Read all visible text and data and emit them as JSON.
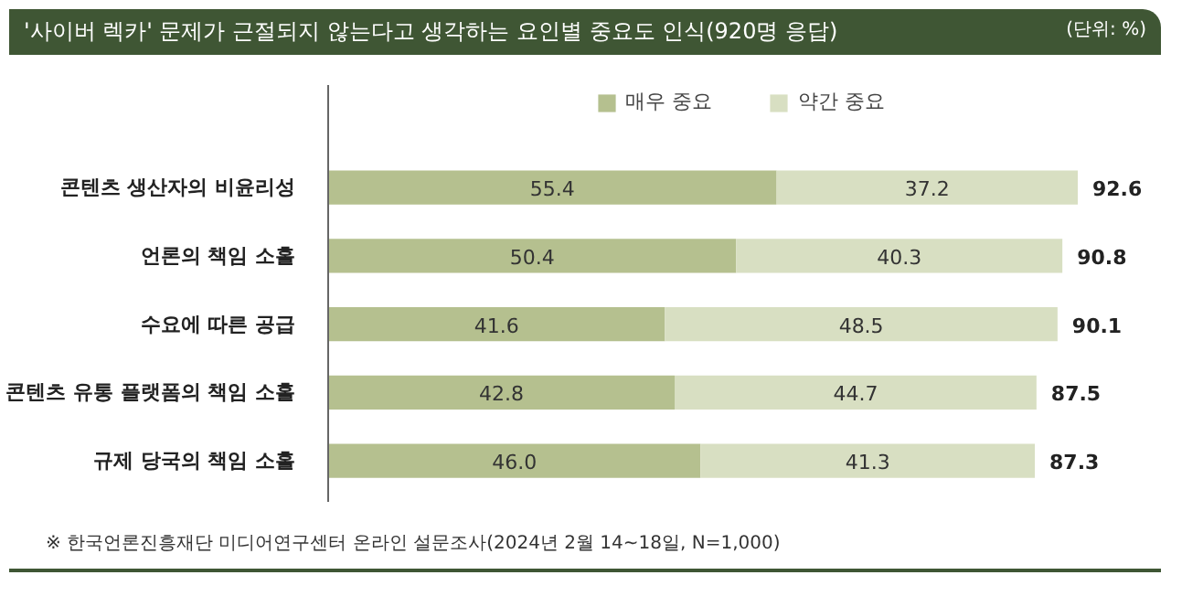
{
  "chart_data": {
    "type": "bar",
    "orientation": "horizontal",
    "stacked": true,
    "title": "'사이버 렉카' 문제가 근절되지 않는다고 생각하는 요인별 중요도 인식(920명 응답)",
    "annotations": [
      "(단위: %)",
      "※ 한국언론진흥재단 미디어연구센터 온라인 설문조사(2024년 2월 14~18일, N=1,000)"
    ],
    "categories": [
      "콘텐츠 생산자의 비윤리성",
      "언론의 책임 소홀",
      "수요에 따른 공급",
      "콘텐츠 유통 플랫폼의 책임 소홀",
      "규제 당국의 책임 소홀"
    ],
    "series": [
      {
        "name": "매우 중요",
        "color": "#b5c08f",
        "values": [
          55.4,
          50.4,
          41.6,
          42.8,
          46.0
        ],
        "value_labels": [
          "55.4",
          "50.4",
          "41.6",
          "42.8",
          "46.0"
        ]
      },
      {
        "name": "약간 중요",
        "color": "#d8dfc2",
        "values": [
          37.2,
          40.3,
          48.5,
          44.7,
          41.3
        ],
        "value_labels": [
          "37.2",
          "40.3",
          "48.5",
          "44.7",
          "41.3"
        ]
      }
    ],
    "totals": [
      "92.6",
      "90.8",
      "90.1",
      "87.5",
      "87.3"
    ],
    "legend": "top",
    "grid": false
  }
}
